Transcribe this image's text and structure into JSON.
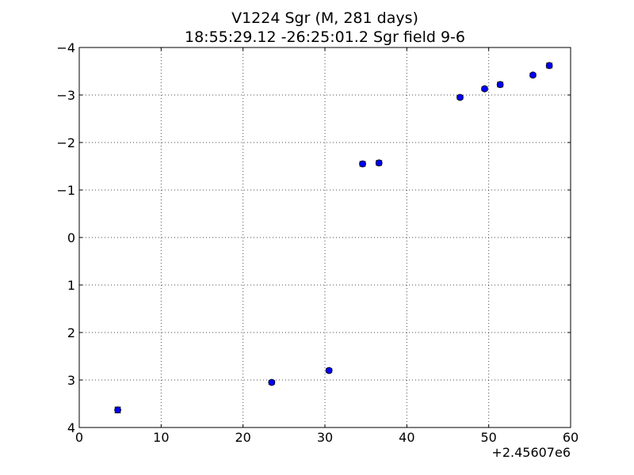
{
  "chart_data": {
    "type": "scatter",
    "title": "V1224 Sgr  (M, 281 days)",
    "subtitle": "18:55:29.12 -26:25:01.2 Sgr field 9-6",
    "xlabel": "",
    "ylabel": "",
    "x_offset_label": "+2.45607e6",
    "xlim": [
      0,
      60
    ],
    "ylim": [
      4,
      -4
    ],
    "y_inverted": true,
    "grid": true,
    "x_ticks": [
      0,
      10,
      20,
      30,
      40,
      50,
      60
    ],
    "x_tick_labels": [
      "0",
      "10",
      "20",
      "30",
      "40",
      "50",
      "60"
    ],
    "y_ticks": [
      -4,
      -3,
      -2,
      -1,
      0,
      1,
      2,
      3,
      4
    ],
    "y_tick_labels": [
      "−4",
      "−3",
      "−2",
      "−1",
      "0",
      "1",
      "2",
      "3",
      "4"
    ],
    "marker_color": "#0000ff",
    "series": [
      {
        "x": [
          4.7,
          23.5,
          30.5,
          34.6,
          36.6,
          46.5,
          49.5,
          51.4,
          55.4,
          57.4
        ],
        "y": [
          3.63,
          3.05,
          2.8,
          -1.55,
          -1.57,
          -2.95,
          -3.13,
          -3.22,
          -3.42,
          -3.62
        ],
        "yerr": [
          0.06,
          0.04,
          0.04,
          0.05,
          0.05,
          0.04,
          0.04,
          0.05,
          0.04,
          0.05
        ]
      }
    ]
  }
}
